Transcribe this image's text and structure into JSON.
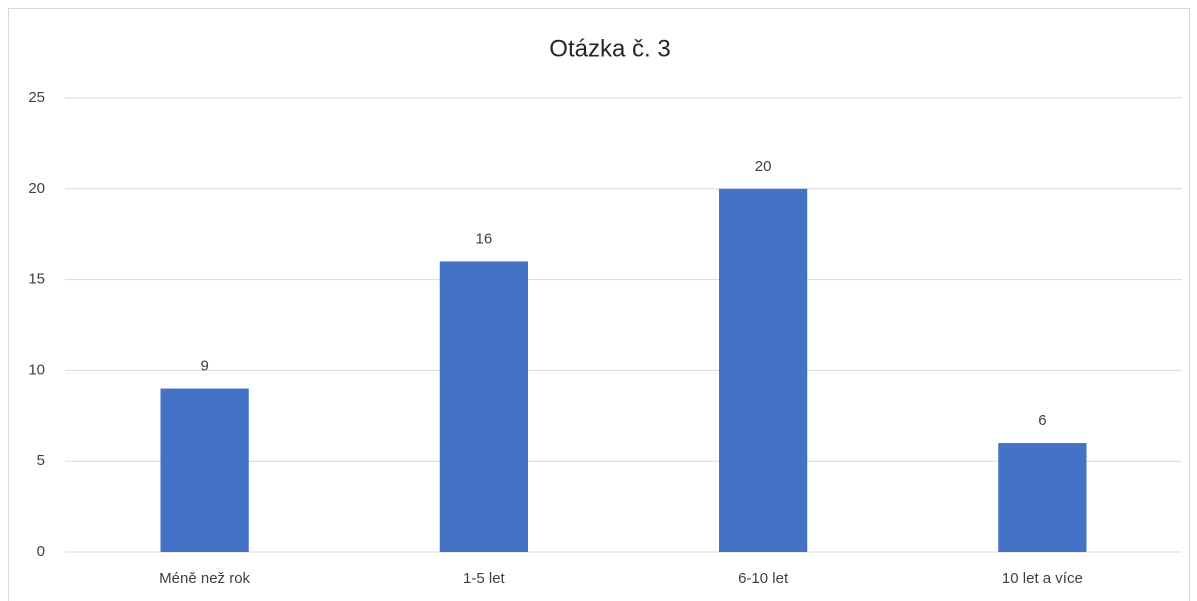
{
  "chart_data": {
    "type": "bar",
    "title": "Otázka č. 3",
    "categories": [
      "Méně než rok",
      "1-5 let",
      "6-10 let",
      "10 let a více"
    ],
    "values": [
      9,
      16,
      20,
      6
    ],
    "color": "#4472c4",
    "ylim": [
      0,
      25
    ],
    "yticks": [
      0,
      5,
      10,
      15,
      20,
      25
    ],
    "grid": true,
    "data_labels": true
  }
}
